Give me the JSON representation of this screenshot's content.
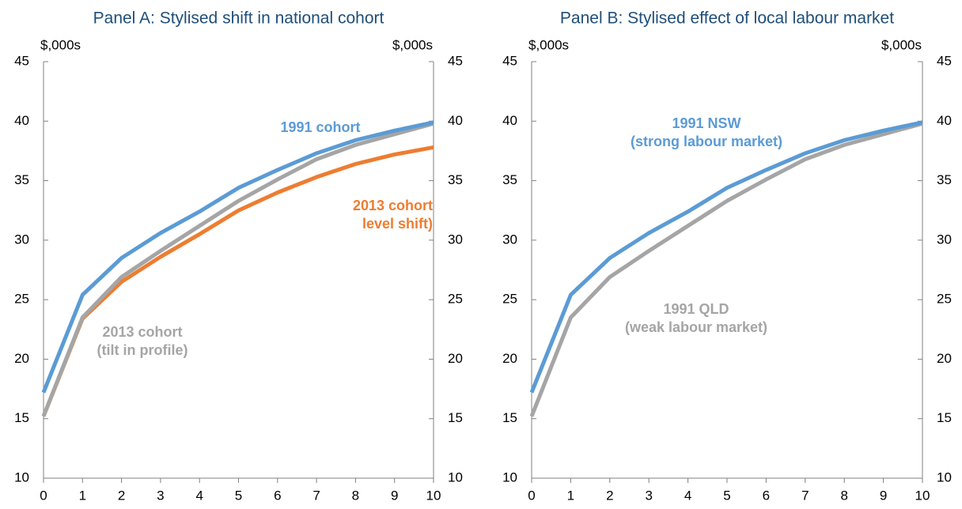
{
  "chart_data": [
    {
      "type": "line",
      "title": "Panel A: Stylised shift in national cohort",
      "ylabel": "$,000s",
      "y2label": "$,000s",
      "x": [
        0,
        1,
        2,
        3,
        4,
        5,
        6,
        7,
        8,
        9,
        10
      ],
      "xlim": [
        0,
        10
      ],
      "xticks": [
        0,
        1,
        2,
        3,
        4,
        5,
        6,
        7,
        8,
        9,
        10
      ],
      "ylim": [
        10,
        45
      ],
      "yticks": [
        10,
        15,
        20,
        25,
        30,
        35,
        40,
        45
      ],
      "y2lim": [
        10,
        45
      ],
      "y2ticks": [
        10,
        15,
        20,
        25,
        30,
        35,
        40,
        45
      ],
      "series": [
        {
          "label": [
            "2013 cohort",
            "level shift)"
          ],
          "color": "#ed7d31",
          "values": [
            15.2,
            23.4,
            26.5,
            28.6,
            30.5,
            32.5,
            34.0,
            35.3,
            36.4,
            37.2,
            37.8
          ]
        },
        {
          "label": [
            "2013 cohort",
            "(tilt in profile)"
          ],
          "color": "#a5a5a5",
          "values": [
            15.2,
            23.5,
            26.9,
            29.1,
            31.2,
            33.3,
            35.1,
            36.8,
            38.0,
            38.9,
            39.8
          ]
        },
        {
          "label": [
            "1991 cohort"
          ],
          "color": "#5b9bd5",
          "values": [
            17.2,
            25.4,
            28.5,
            30.6,
            32.4,
            34.4,
            35.9,
            37.3,
            38.4,
            39.2,
            39.9
          ]
        }
      ]
    },
    {
      "type": "line",
      "title": "Panel B: Stylised effect of local labour market",
      "ylabel": "$,000s",
      "y2label": "$,000s",
      "x": [
        0,
        1,
        2,
        3,
        4,
        5,
        6,
        7,
        8,
        9,
        10
      ],
      "xlim": [
        0,
        10
      ],
      "xticks": [
        0,
        1,
        2,
        3,
        4,
        5,
        6,
        7,
        8,
        9,
        10
      ],
      "ylim": [
        10,
        45
      ],
      "yticks": [
        10,
        15,
        20,
        25,
        30,
        35,
        40,
        45
      ],
      "y2lim": [
        10,
        45
      ],
      "y2ticks": [
        10,
        15,
        20,
        25,
        30,
        35,
        40,
        45
      ],
      "series": [
        {
          "label": [
            "1991 QLD",
            "(weak labour market)"
          ],
          "color": "#a5a5a5",
          "values": [
            15.2,
            23.5,
            26.9,
            29.1,
            31.2,
            33.3,
            35.1,
            36.8,
            38.0,
            38.9,
            39.8
          ]
        },
        {
          "label": [
            "1991 NSW",
            "(strong labour market)"
          ],
          "color": "#5b9bd5",
          "values": [
            17.2,
            25.4,
            28.5,
            30.6,
            32.4,
            34.4,
            35.9,
            37.3,
            38.4,
            39.2,
            39.9
          ]
        }
      ]
    }
  ]
}
